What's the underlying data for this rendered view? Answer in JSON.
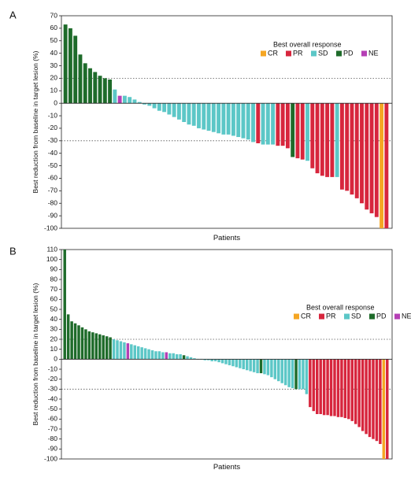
{
  "colors": {
    "CR": "#F5A623",
    "PR": "#D7263D",
    "SD": "#5CC7C7",
    "PD": "#1E6B2A",
    "NE": "#B53FB5"
  },
  "chart_data": [
    {
      "panel": "A",
      "type": "bar",
      "subtype": "waterfall",
      "title": "",
      "xlabel": "Patients",
      "ylabel": "Best reduction from baseline in target lesion (%)",
      "ylim": [
        -100,
        70
      ],
      "yticks": [
        70,
        60,
        50,
        40,
        30,
        20,
        10,
        0,
        -10,
        -20,
        -30,
        -40,
        -50,
        -60,
        -70,
        -80,
        -90,
        -100
      ],
      "ytick_labels": [
        "70",
        "60",
        "50",
        "40",
        "30",
        "20",
        "10",
        "0",
        "-10",
        "-20",
        "-30",
        "-40",
        "-50",
        "-60",
        "-70",
        "-80",
        "-90",
        "-100"
      ],
      "reference_lines": [
        20,
        -30
      ],
      "grid": false,
      "legend": {
        "title": "Best overall response",
        "position": "top-right",
        "entries": [
          "CR",
          "PR",
          "SD",
          "PD",
          "NE"
        ]
      },
      "values": [
        63,
        60,
        54,
        39,
        32,
        28,
        25,
        22,
        20,
        19,
        11,
        6,
        6,
        5,
        3,
        1,
        -1,
        -2,
        -4,
        -6,
        -7,
        -9,
        -11,
        -13,
        -15,
        -17,
        -18,
        -20,
        -21,
        -22,
        -23,
        -24,
        -25,
        -25,
        -26,
        -27,
        -28,
        -29,
        -31,
        -32,
        -33,
        -33,
        -33,
        -34,
        -34,
        -36,
        -43,
        -44,
        -45,
        -46,
        -52,
        -56,
        -58,
        -59,
        -59,
        -59,
        -69,
        -70,
        -73,
        -76,
        -80,
        -85,
        -88,
        -91,
        -100,
        -100
      ],
      "responses": [
        "PD",
        "PD",
        "PD",
        "PD",
        "PD",
        "PD",
        "PD",
        "PD",
        "PD",
        "PD",
        "SD",
        "NE",
        "SD",
        "SD",
        "SD",
        "SD",
        "SD",
        "SD",
        "SD",
        "SD",
        "SD",
        "SD",
        "SD",
        "SD",
        "SD",
        "SD",
        "SD",
        "SD",
        "SD",
        "SD",
        "SD",
        "SD",
        "SD",
        "SD",
        "SD",
        "SD",
        "SD",
        "SD",
        "SD",
        "PR",
        "SD",
        "SD",
        "SD",
        "PR",
        "PR",
        "PR",
        "PD",
        "PR",
        "PR",
        "SD",
        "PR",
        "PR",
        "PR",
        "PR",
        "PR",
        "SD",
        "PR",
        "PR",
        "PR",
        "PR",
        "PR",
        "PR",
        "PR",
        "PR",
        "CR",
        "PR"
      ]
    },
    {
      "panel": "B",
      "type": "bar",
      "subtype": "waterfall",
      "title": "",
      "xlabel": "Patients",
      "ylabel": "Best reduction from baseline in target lesion (%)",
      "ylim": [
        -100,
        110
      ],
      "yticks": [
        110,
        100,
        90,
        80,
        70,
        60,
        50,
        40,
        30,
        20,
        10,
        0,
        -10,
        -20,
        -30,
        -40,
        -50,
        -60,
        -70,
        -80,
        -90,
        -100
      ],
      "ytick_labels": [
        "110",
        "100",
        "90",
        "80",
        "70",
        "60",
        "50",
        "40",
        "30",
        "20",
        "10",
        "0",
        "-10",
        "-20",
        "-30",
        "-40",
        "-50",
        "-60",
        "-70",
        "-80",
        "-90",
        "-100"
      ],
      "reference_lines": [
        20,
        -30
      ],
      "grid": false,
      "legend": {
        "title": "Best overall response",
        "position": "top-right",
        "entries": [
          "CR",
          "PR",
          "SD",
          "PD",
          "NE"
        ]
      },
      "values": [
        110,
        45,
        38,
        36,
        34,
        32,
        30,
        28,
        27,
        26,
        25,
        24,
        23,
        22,
        20,
        19,
        18,
        17,
        16,
        15,
        14,
        13,
        12,
        11,
        10,
        9,
        8,
        8,
        7,
        7,
        6,
        6,
        5,
        5,
        4,
        3,
        2,
        1,
        0,
        0,
        -1,
        -1,
        -2,
        -2,
        -3,
        -4,
        -5,
        -6,
        -7,
        -8,
        -9,
        -10,
        -11,
        -12,
        -13,
        -14,
        -14,
        -15,
        -16,
        -18,
        -20,
        -22,
        -24,
        -26,
        -28,
        -29,
        -30,
        -30,
        -30,
        -35,
        -48,
        -52,
        -55,
        -55,
        -56,
        -56,
        -57,
        -57,
        -58,
        -58,
        -59,
        -60,
        -62,
        -65,
        -68,
        -72,
        -75,
        -78,
        -80,
        -82,
        -85,
        -100,
        -100
      ],
      "responses": [
        "PD",
        "PD",
        "PD",
        "PD",
        "PD",
        "PD",
        "PD",
        "PD",
        "PD",
        "PD",
        "PD",
        "PD",
        "PD",
        "PD",
        "SD",
        "SD",
        "SD",
        "SD",
        "NE",
        "SD",
        "SD",
        "SD",
        "SD",
        "SD",
        "SD",
        "SD",
        "SD",
        "SD",
        "SD",
        "NE",
        "SD",
        "SD",
        "SD",
        "SD",
        "PD",
        "SD",
        "SD",
        "SD",
        "SD",
        "SD",
        "SD",
        "SD",
        "SD",
        "SD",
        "SD",
        "SD",
        "SD",
        "SD",
        "SD",
        "SD",
        "SD",
        "SD",
        "SD",
        "SD",
        "SD",
        "SD",
        "PD",
        "SD",
        "SD",
        "SD",
        "SD",
        "SD",
        "SD",
        "SD",
        "SD",
        "SD",
        "PD",
        "SD",
        "SD",
        "SD",
        "PR",
        "PR",
        "PR",
        "PR",
        "PR",
        "PR",
        "PR",
        "PR",
        "PR",
        "PR",
        "PR",
        "PR",
        "PR",
        "PR",
        "PR",
        "PR",
        "PR",
        "PR",
        "PR",
        "PR",
        "PR",
        "CR",
        "PR"
      ]
    }
  ]
}
